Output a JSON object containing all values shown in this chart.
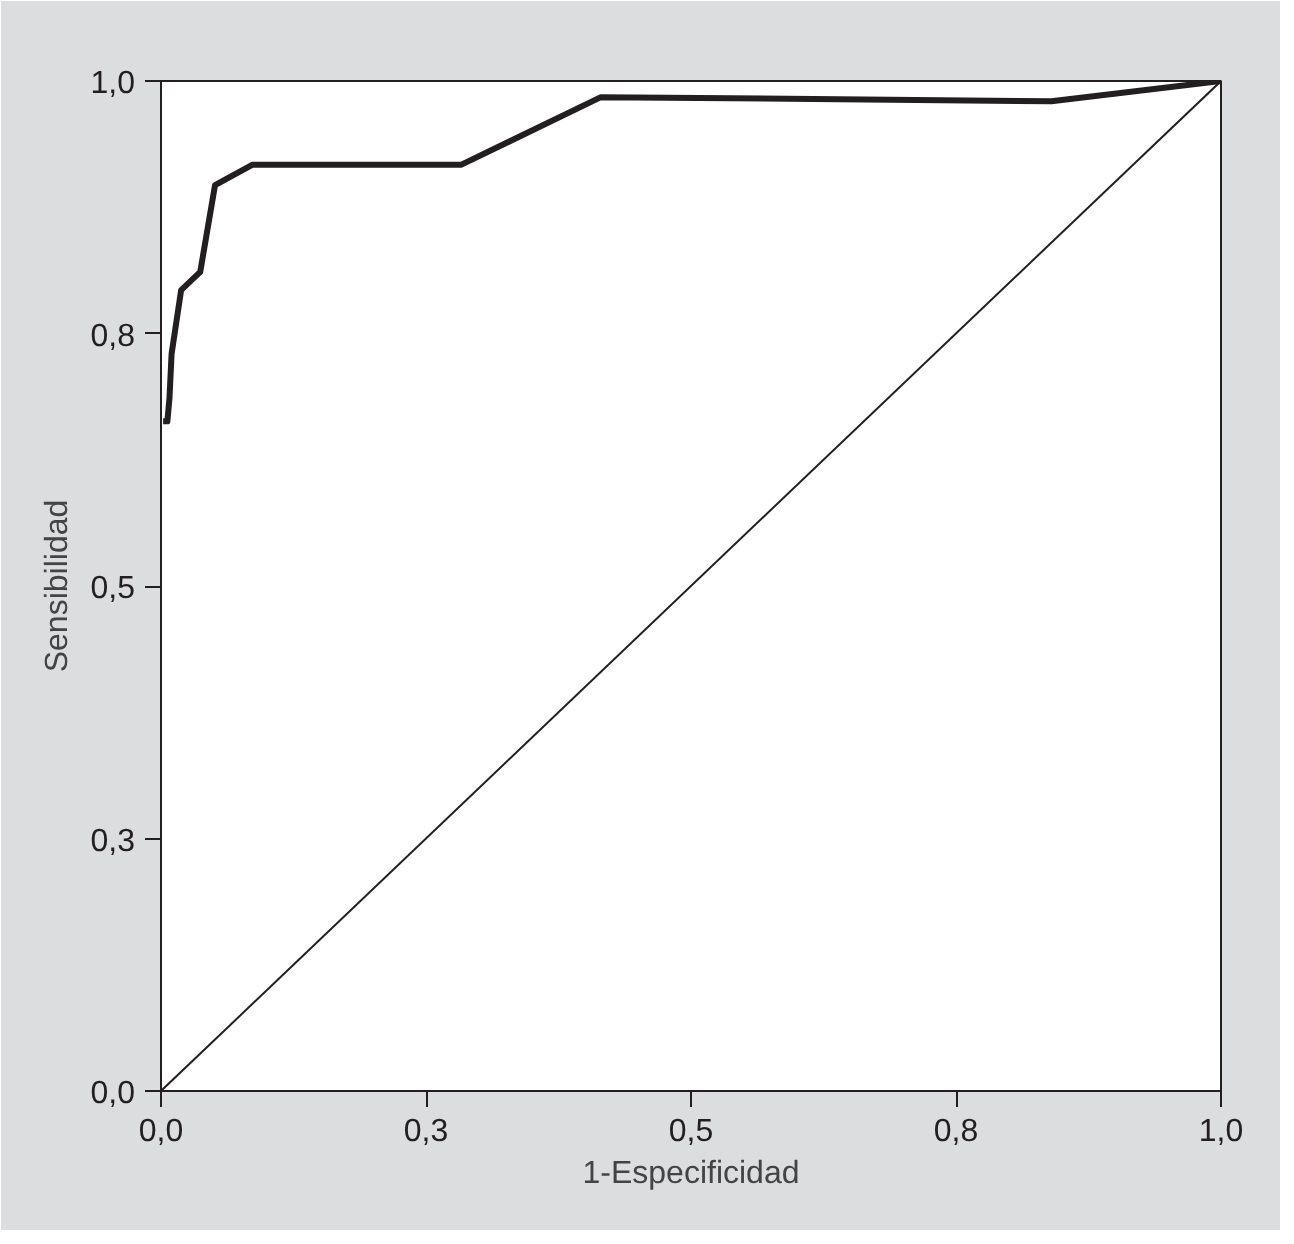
{
  "chart_data": {
    "type": "line",
    "xlabel": "1-Especificidad",
    "ylabel": "Sensibilidad",
    "xlim": [
      0,
      1
    ],
    "ylim": [
      0,
      1
    ],
    "xticks": [
      {
        "value": 0,
        "label": "0,0"
      },
      {
        "value": 0.25,
        "label": "0,3"
      },
      {
        "value": 0.5,
        "label": "0,5"
      },
      {
        "value": 0.75,
        "label": "0,8"
      },
      {
        "value": 1,
        "label": "1,0"
      }
    ],
    "yticks": [
      {
        "value": 0,
        "label": "0,0"
      },
      {
        "value": 0.25,
        "label": "0,3"
      },
      {
        "value": 0.5,
        "label": "0,5"
      },
      {
        "value": 0.75,
        "label": "0,8"
      },
      {
        "value": 1,
        "label": "1,0"
      }
    ],
    "grid": false,
    "series": [
      {
        "color": "#231f20",
        "x": [
          0.002,
          0.006,
          0.008,
          0.01,
          0.019,
          0.037,
          0.051,
          0.086,
          0.283,
          0.415,
          0.84,
          1.0
        ],
        "values": [
          0.663,
          0.663,
          0.686,
          0.73,
          0.793,
          0.811,
          0.897,
          0.917,
          0.917,
          0.984,
          0.98,
          1.0
        ]
      },
      {
        "color": "#231f20",
        "x": [
          0,
          1
        ],
        "values": [
          0,
          1
        ]
      }
    ]
  }
}
